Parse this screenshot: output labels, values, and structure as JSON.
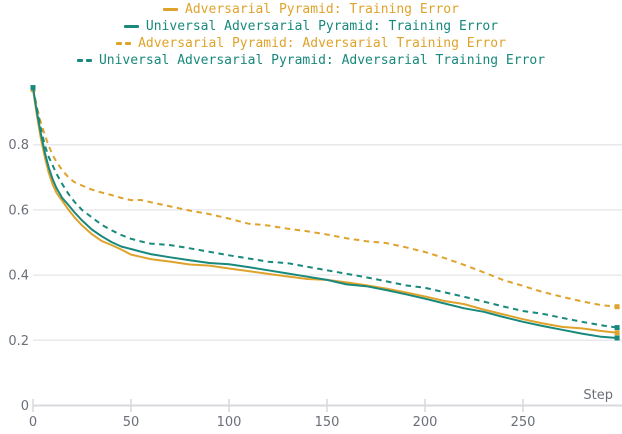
{
  "chart_data": {
    "type": "line",
    "title": "",
    "xlabel": "Step",
    "ylabel": "",
    "x_range": [
      0,
      300
    ],
    "y_range": [
      0,
      1.0
    ],
    "x_ticks": [
      0,
      50,
      100,
      150,
      200,
      250
    ],
    "y_ticks": [
      0,
      0.2,
      0.4,
      0.6,
      0.8
    ],
    "grid": "horizontal-only",
    "legend_position": "top-center",
    "colors": {
      "gold": "#dfa32b",
      "teal": "#18897c",
      "gridline": "#e9e9ec",
      "axis": "#d9d9de",
      "tick_label": "#6b7078",
      "background": "#ffffff"
    },
    "x": [
      0,
      2,
      4,
      6,
      8,
      10,
      12,
      15,
      18,
      21,
      25,
      30,
      35,
      40,
      45,
      50,
      55,
      60,
      70,
      80,
      90,
      100,
      110,
      120,
      130,
      140,
      150,
      160,
      170,
      180,
      190,
      200,
      210,
      220,
      230,
      240,
      250,
      260,
      270,
      280,
      290,
      298
    ],
    "series": [
      {
        "name": "Adversarial Pyramid: Training Error",
        "color": "#dfa32b",
        "dash": false,
        "values": [
          0.97,
          0.89,
          0.82,
          0.762,
          0.715,
          0.68,
          0.655,
          0.625,
          0.6,
          0.578,
          0.553,
          0.527,
          0.507,
          0.49,
          0.477,
          0.462,
          0.456,
          0.45,
          0.443,
          0.435,
          0.427,
          0.419,
          0.412,
          0.404,
          0.397,
          0.39,
          0.383,
          0.376,
          0.368,
          0.359,
          0.348,
          0.336,
          0.323,
          0.309,
          0.293,
          0.279,
          0.265,
          0.253,
          0.243,
          0.234,
          0.227,
          0.223
        ]
      },
      {
        "name": "Universal Adversarial Pyramid: Training Error",
        "color": "#18897c",
        "dash": false,
        "values": [
          0.975,
          0.9,
          0.835,
          0.775,
          0.73,
          0.695,
          0.668,
          0.638,
          0.613,
          0.592,
          0.567,
          0.54,
          0.52,
          0.503,
          0.49,
          0.478,
          0.471,
          0.464,
          0.455,
          0.447,
          0.439,
          0.431,
          0.423,
          0.414,
          0.405,
          0.396,
          0.387,
          0.374,
          0.364,
          0.353,
          0.341,
          0.328,
          0.314,
          0.3,
          0.285,
          0.27,
          0.256,
          0.244,
          0.233,
          0.222,
          0.213,
          0.207
        ]
      },
      {
        "name": "Adversarial Pyramid: Adversarial Training Error",
        "color": "#dfa32b",
        "dash": true,
        "values": [
          0.97,
          0.915,
          0.868,
          0.828,
          0.795,
          0.768,
          0.747,
          0.722,
          0.702,
          0.688,
          0.673,
          0.661,
          0.653,
          0.646,
          0.638,
          0.632,
          0.628,
          0.622,
          0.61,
          0.598,
          0.588,
          0.575,
          0.56,
          0.55,
          0.541,
          0.534,
          0.525,
          0.514,
          0.506,
          0.496,
          0.484,
          0.47,
          0.452,
          0.432,
          0.41,
          0.387,
          0.365,
          0.347,
          0.333,
          0.32,
          0.309,
          0.303
        ]
      },
      {
        "name": "Universal Adversarial Pyramid: Adversarial Training Error",
        "color": "#18897c",
        "dash": true,
        "values": [
          0.975,
          0.91,
          0.85,
          0.8,
          0.765,
          0.735,
          0.71,
          0.678,
          0.65,
          0.627,
          0.602,
          0.575,
          0.553,
          0.537,
          0.523,
          0.512,
          0.505,
          0.499,
          0.49,
          0.481,
          0.471,
          0.461,
          0.452,
          0.443,
          0.434,
          0.424,
          0.414,
          0.404,
          0.394,
          0.383,
          0.371,
          0.359,
          0.346,
          0.333,
          0.319,
          0.305,
          0.292,
          0.279,
          0.267,
          0.256,
          0.246,
          0.239
        ]
      }
    ]
  }
}
